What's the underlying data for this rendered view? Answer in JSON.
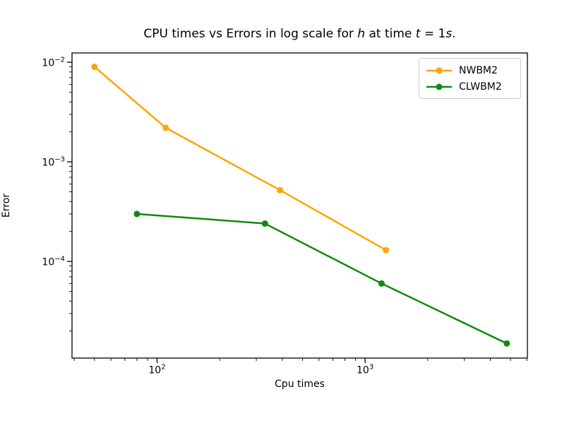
{
  "figure": {
    "title": {
      "part1": "CPU times vs Errors in log scale for ",
      "var1": "h",
      "part2": " at time ",
      "var2": "t",
      "part3": " = 1",
      "var3": "s",
      "part4": "."
    },
    "xlabel": "Cpu times",
    "ylabel": "Error"
  },
  "legend": {
    "items": [
      {
        "label": "NWBM2",
        "color": "#ffa500"
      },
      {
        "label": "CLWBM2",
        "color": "#0f8a0f"
      }
    ]
  },
  "chart_data": {
    "type": "line",
    "title": "CPU times vs Errors in log scale for h at time t = 1s.",
    "xlabel": "Cpu times",
    "ylabel": "Error",
    "xscale": "log",
    "yscale": "log",
    "xlim": [
      39,
      6030
    ],
    "ylim": [
      1.07e-05,
      0.0124
    ],
    "grid": false,
    "marker": "o",
    "legend_position": "upper right",
    "axis_color": "#000000",
    "x_major_ticks": [
      {
        "value": 100,
        "base": "10",
        "exp": "2"
      },
      {
        "value": 1000,
        "base": "10",
        "exp": "3"
      }
    ],
    "y_major_ticks": [
      {
        "value": 0.01,
        "base": "10",
        "exp": "−2"
      },
      {
        "value": 0.001,
        "base": "10",
        "exp": "−3"
      },
      {
        "value": 0.0001,
        "base": "10",
        "exp": "−4"
      }
    ],
    "series": [
      {
        "name": "NWBM2",
        "color": "#ffa500",
        "x": [
          50,
          110,
          390,
          1260
        ],
        "y": [
          0.009,
          0.0022,
          0.00052,
          0.00013
        ]
      },
      {
        "name": "CLWBM2",
        "color": "#0f8a0f",
        "x": [
          80,
          330,
          1200,
          4800
        ],
        "y": [
          0.0003,
          0.00024,
          6e-05,
          1.5e-05
        ]
      }
    ]
  }
}
